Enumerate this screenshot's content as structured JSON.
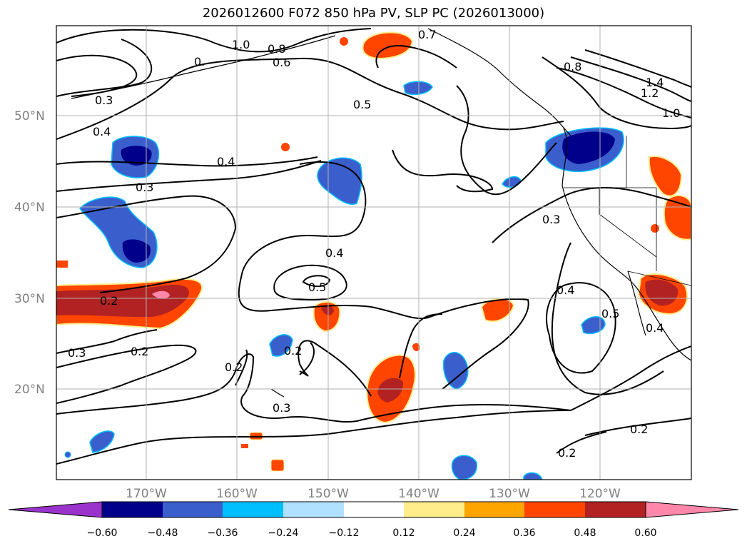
{
  "title": "2026012600 F072 850 hPa PV, SLP PC (2026013000)",
  "map": {
    "lat_labels": [
      "50°N",
      "40°N",
      "30°N",
      "20°N"
    ],
    "lon_labels": [
      "170°W",
      "160°W",
      "150°W",
      "140°W",
      "130°W",
      "120°W"
    ]
  },
  "contour_labels": [
    "1.0",
    "0.8",
    "0.7",
    "0.6",
    "0.",
    "0.3",
    "0.5",
    "0.8",
    "1.4",
    "1.2",
    "1.0",
    "0.4",
    "0.4",
    "0.3",
    "0.3",
    "0.4",
    "0.5",
    "0.2",
    "0.4",
    "0.5",
    "0.4",
    "0.3",
    "0.2",
    "0.2",
    "0.2",
    "0.3",
    "0.2",
    "0.2"
  ],
  "colorbar": {
    "ticks": [
      "−0.60",
      "−0.48",
      "−0.36",
      "−0.24",
      "−0.12",
      "0.12",
      "0.24",
      "0.36",
      "0.48",
      "0.60"
    ],
    "colors": [
      "#9a33cc",
      "#00008b",
      "#3a5fcd",
      "#00bfff",
      "#b0e2ff",
      "#ffffff",
      "#ffec8b",
      "#ffa500",
      "#ff4500",
      "#b22222",
      "#ff88aa"
    ]
  }
}
